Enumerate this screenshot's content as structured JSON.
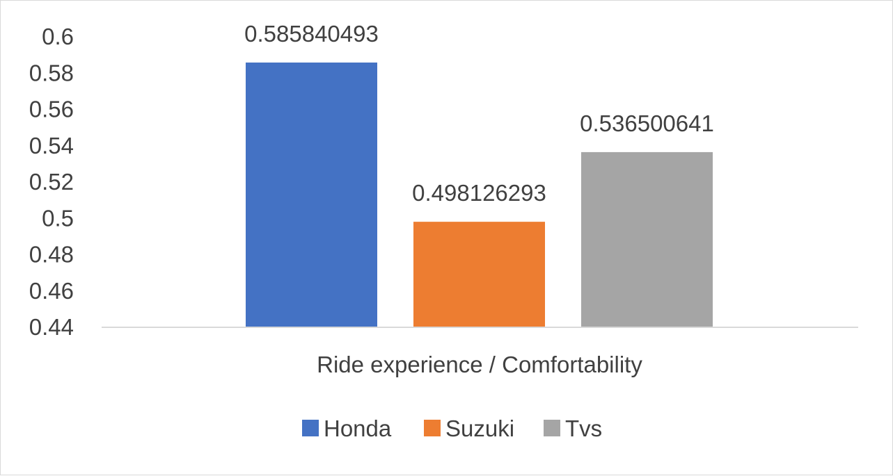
{
  "chart_data": {
    "type": "bar",
    "categories": [
      "Ride experience / Comfortability"
    ],
    "series": [
      {
        "name": "Honda",
        "values": [
          0.585840493
        ],
        "color": "#4472c4",
        "label": "0.585840493"
      },
      {
        "name": "Suzuki",
        "values": [
          0.498126293
        ],
        "color": "#ed7d31",
        "label": "0.498126293"
      },
      {
        "name": "Tvs",
        "values": [
          0.536500641
        ],
        "color": "#a5a5a5",
        "label": "0.536500641"
      }
    ],
    "ylim": [
      0.44,
      0.6
    ],
    "yticks": [
      0.44,
      0.46,
      0.48,
      0.5,
      0.52,
      0.54,
      0.56,
      0.58,
      0.6
    ],
    "ytick_labels": [
      "0.44",
      "0.46",
      "0.48",
      "0.5",
      "0.52",
      "0.54",
      "0.56",
      "0.58",
      "0.6"
    ],
    "grid": false,
    "legend_position": "bottom",
    "title": "",
    "xlabel": "",
    "ylabel": ""
  }
}
